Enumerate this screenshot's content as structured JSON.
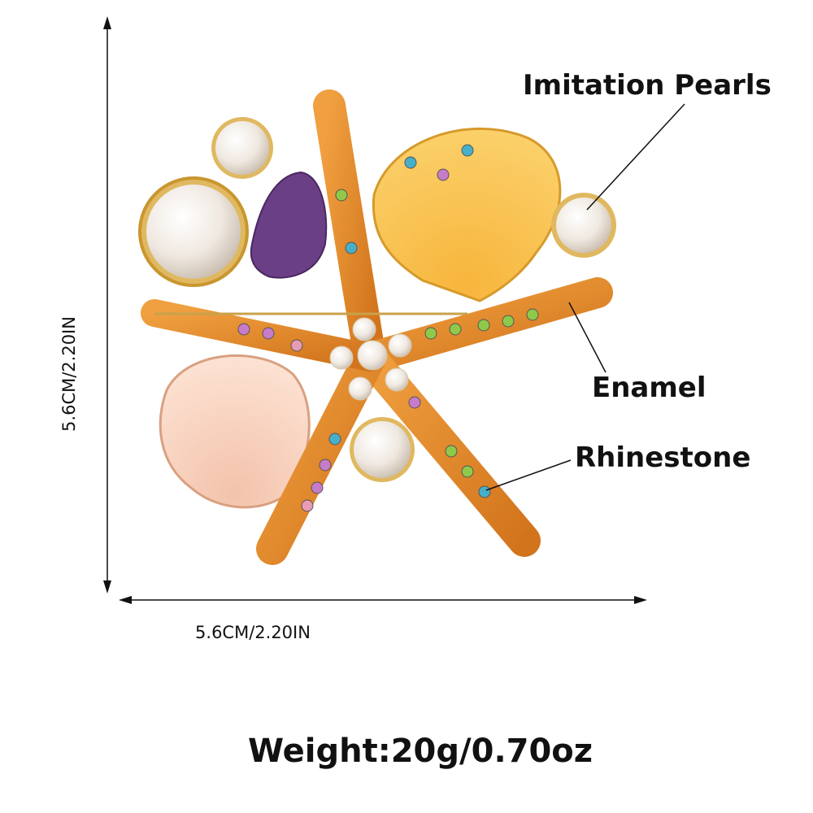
{
  "callouts": [
    {
      "label": "Imitation Pearls"
    },
    {
      "label": "Enamel"
    },
    {
      "label": "Rhinestone"
    }
  ],
  "dimensions": {
    "height": "5.6CM/2.20IN",
    "width": "5.6CM/2.20IN"
  },
  "weight": "Weight:20g/0.70oz"
}
